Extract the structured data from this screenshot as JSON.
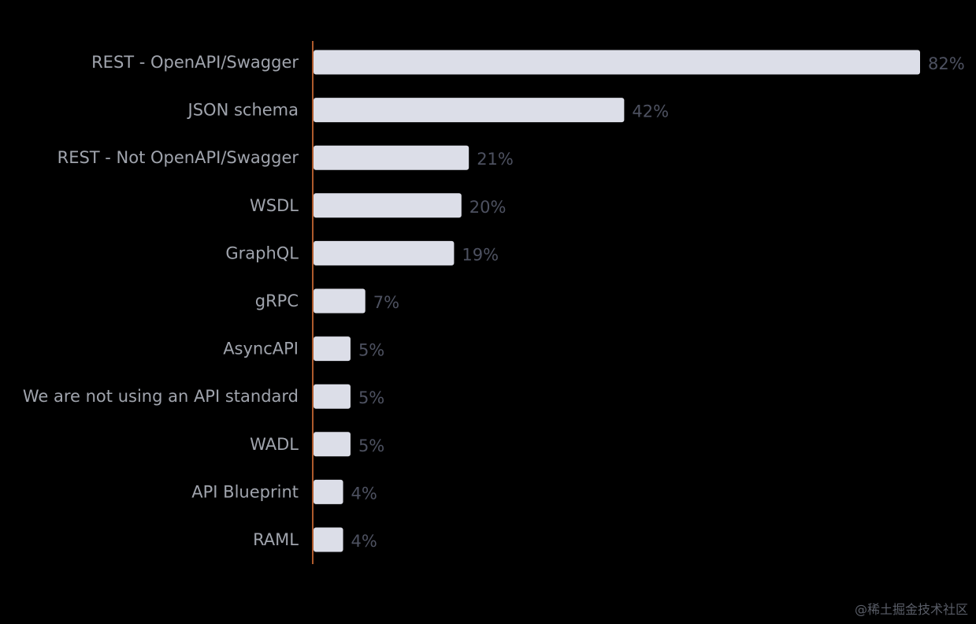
{
  "chart_data": {
    "type": "bar",
    "orientation": "horizontal",
    "categories": [
      "REST - OpenAPI/Swagger",
      "JSON schema",
      "REST - Not OpenAPI/Swagger",
      "WSDL",
      "GraphQL",
      "gRPC",
      "AsyncAPI",
      "We are not using an API standard",
      "WADL",
      "API Blueprint",
      "RAML"
    ],
    "values": [
      82,
      42,
      21,
      20,
      19,
      7,
      5,
      5,
      5,
      4,
      4
    ],
    "value_labels": [
      "82%",
      "42%",
      "21%",
      "20%",
      "19%",
      "7%",
      "5%",
      "5%",
      "5%",
      "4%",
      "4%"
    ],
    "xlim": [
      0,
      82
    ],
    "grid": false,
    "colors": {
      "bar": "#dcdee8",
      "axis": "#e8793a",
      "category_text": "#a0a4ad",
      "value_text": "#4d5160",
      "background": "#000000"
    }
  },
  "watermark": "@稀土掘金技术社区"
}
